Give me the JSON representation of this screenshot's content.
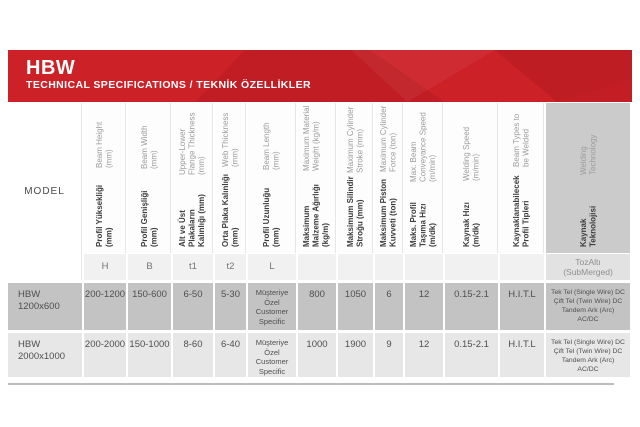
{
  "banner": {
    "title": "HBW",
    "subtitle": "TECHNICAL SPECIFICATIONS / TEKNİK ÖZELLİKLER",
    "bg_color": "#cc2127",
    "text_color": "#ffffff"
  },
  "table": {
    "model_header": "MODEL",
    "columns": [
      {
        "tr": "Profil Yüksekliği (mm)",
        "en": "Beam Height (mm)",
        "sub": "H",
        "highlight": false
      },
      {
        "tr": "Profil Genişliği (mm)",
        "en": "Beam Width (mm)",
        "sub": "B",
        "highlight": false
      },
      {
        "tr": "Alt ve Üst Plakaların Kalınlığı (mm)",
        "en": "Upper-Lower Flange Thickness (mm)",
        "sub": "t1",
        "highlight": false
      },
      {
        "tr": "Orta Plaka Kalınlığı (mm)",
        "en": "Web Thickness (mm)",
        "sub": "t2",
        "highlight": false
      },
      {
        "tr": "Profil Uzunluğu (mm)",
        "en": "Beam Length (mm)",
        "sub": "L",
        "highlight": false
      },
      {
        "tr": "Maksimum Malzeme Ağırlığı (kg/m)",
        "en": "Maximum Material Weight (kg/m)",
        "sub": "",
        "highlight": false
      },
      {
        "tr": "Maksimum Silindir Stroğu (mm)",
        "en": "Maximum Cylinder Stroke (mm)",
        "sub": "",
        "highlight": false
      },
      {
        "tr": "Maksimum Piston Kuvveti (ton)",
        "en": "Maximum Cylinder Force (ton)",
        "sub": "",
        "highlight": false
      },
      {
        "tr": "Maks. Profil Taşıma Hızı (m/dk)",
        "en": "Max. Beam Conveyance Speed (m/min)",
        "sub": "",
        "highlight": false
      },
      {
        "tr": "Kaynak Hızı (m/dk)",
        "en": "Welding Speed (m/min)",
        "sub": "",
        "highlight": false
      },
      {
        "tr": "Kaynaklanabilecek Profil Tipleri",
        "en": "Beam Types to be Welded",
        "sub": "",
        "highlight": false
      },
      {
        "tr": "Kaynak Teknolojisi",
        "en": "Welding Technology",
        "sub": "TozAltı\n(SubMerged)",
        "highlight": true
      }
    ],
    "rows": [
      {
        "model": "HBW\n1200x600",
        "values": [
          "200-1200",
          "150-600",
          "6-50",
          "5-30",
          "Müşteriye Özel Customer Specific",
          "800",
          "1050",
          "6",
          "12",
          "0.15-2.1",
          "H.I.T.L",
          "Tek Tel (Single Wire) DC\nÇift Tel (Twin Wire) DC\nTandem Ark (Arc)\nAC/DC"
        ]
      },
      {
        "model": "HBW\n2000x1000",
        "values": [
          "200-2000",
          "150-1000",
          "8-60",
          "6-40",
          "Müşteriye Özel Customer Specific",
          "1000",
          "1900",
          "9",
          "12",
          "0.15-2.1",
          "H.I.T.L",
          "Tek Tel (Single Wire) DC\nÇift Tel (Twin Wire) DC\nTandem Ark (Arc)\nAC/DC"
        ]
      }
    ],
    "colors": {
      "header_bg": "#fdfdfd",
      "highlight_header_bg": "#cbcbcb",
      "subheader_bg": "#f1f1f1",
      "row1_bg": "#c3c3c3",
      "row2_bg": "#e7e7e7"
    }
  }
}
